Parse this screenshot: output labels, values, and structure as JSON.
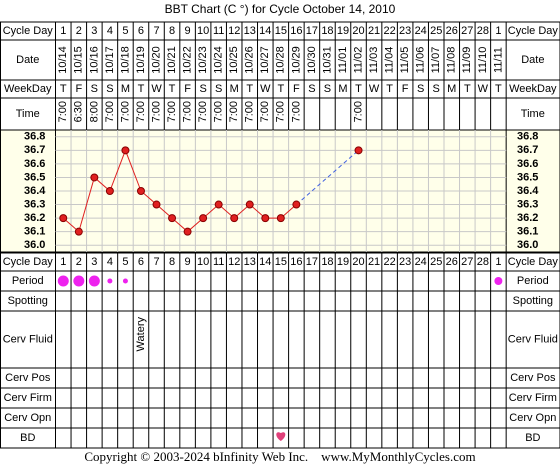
{
  "chart_data": {
    "type": "line",
    "title": "BBT Chart (C °) for Cycle October 14, 2010",
    "row_labels": {
      "cycle_day": "Cycle Day",
      "date": "Date",
      "weekday": "WeekDay",
      "time": "Time",
      "period": "Period",
      "spotting": "Spotting",
      "cerv_fluid": "Cerv Fluid",
      "cerv_pos": "Cerv Pos",
      "cerv_firm": "Cerv Firm",
      "cerv_opn": "Cerv Opn",
      "bd": "BD"
    },
    "cycle_days": [
      1,
      2,
      3,
      4,
      5,
      6,
      7,
      8,
      9,
      10,
      11,
      12,
      13,
      14,
      15,
      16,
      17,
      18,
      19,
      20,
      21,
      22,
      23,
      24,
      25,
      26,
      27,
      28,
      1
    ],
    "dates": [
      "10/14",
      "10/15",
      "10/16",
      "10/17",
      "10/18",
      "10/19",
      "10/20",
      "10/21",
      "10/22",
      "10/23",
      "10/24",
      "10/25",
      "10/26",
      "10/27",
      "10/28",
      "10/29",
      "10/30",
      "10/31",
      "11/01",
      "11/02",
      "11/03",
      "11/04",
      "11/05",
      "11/06",
      "11/07",
      "11/08",
      "11/09",
      "11/10",
      "11/11"
    ],
    "weekdays": [
      "T",
      "F",
      "S",
      "S",
      "M",
      "T",
      "W",
      "T",
      "F",
      "S",
      "S",
      "M",
      "T",
      "W",
      "T",
      "F",
      "S",
      "S",
      "M",
      "T",
      "W",
      "T",
      "F",
      "S",
      "S",
      "M",
      "T",
      "W",
      "T"
    ],
    "times": [
      "7:00",
      "6:30",
      "8:00",
      "7:00",
      "7:00",
      "7:00",
      "7:00",
      "7:00",
      "7:00",
      "7:00",
      "7:00",
      "7:00",
      "7:00",
      "7:00",
      "7:00",
      "7:00",
      null,
      null,
      null,
      "7:00",
      null,
      null,
      null,
      null,
      null,
      null,
      null,
      null,
      null
    ],
    "values": [
      36.2,
      36.1,
      36.5,
      36.4,
      36.7,
      36.4,
      36.3,
      36.2,
      36.1,
      36.2,
      36.3,
      36.2,
      36.3,
      36.2,
      36.2,
      36.3,
      null,
      null,
      null,
      36.7,
      null,
      null,
      null,
      null,
      null,
      null,
      null,
      null,
      null
    ],
    "color": "#e02020",
    "ylim": [
      35.95,
      36.85
    ],
    "yticks": [
      36.8,
      36.7,
      36.6,
      36.5,
      36.4,
      36.3,
      36.2,
      36.1,
      {
        "value": 36,
        "label": "36.0"
      }
    ],
    "period": [
      3,
      3,
      3,
      1,
      1,
      null,
      null,
      null,
      null,
      null,
      null,
      null,
      null,
      null,
      null,
      null,
      null,
      null,
      null,
      null,
      null,
      null,
      null,
      null,
      null,
      null,
      null,
      null,
      2
    ],
    "cerv_fluid": [
      null,
      null,
      null,
      null,
      null,
      "Watery",
      null,
      null,
      null,
      null,
      null,
      null,
      null,
      null,
      null,
      null,
      null,
      null,
      null,
      null,
      null,
      null,
      null,
      null,
      null,
      null,
      null,
      null,
      null
    ],
    "bd": [
      null,
      null,
      null,
      null,
      null,
      null,
      null,
      null,
      null,
      null,
      null,
      null,
      null,
      null,
      1,
      null,
      null,
      null,
      null,
      null,
      null,
      null,
      null,
      null,
      null,
      null,
      null,
      null,
      null
    ],
    "footer": "Copyright © 2003-2024 bInfinity Web Inc.    www.MyMonthlyCycles.com"
  }
}
